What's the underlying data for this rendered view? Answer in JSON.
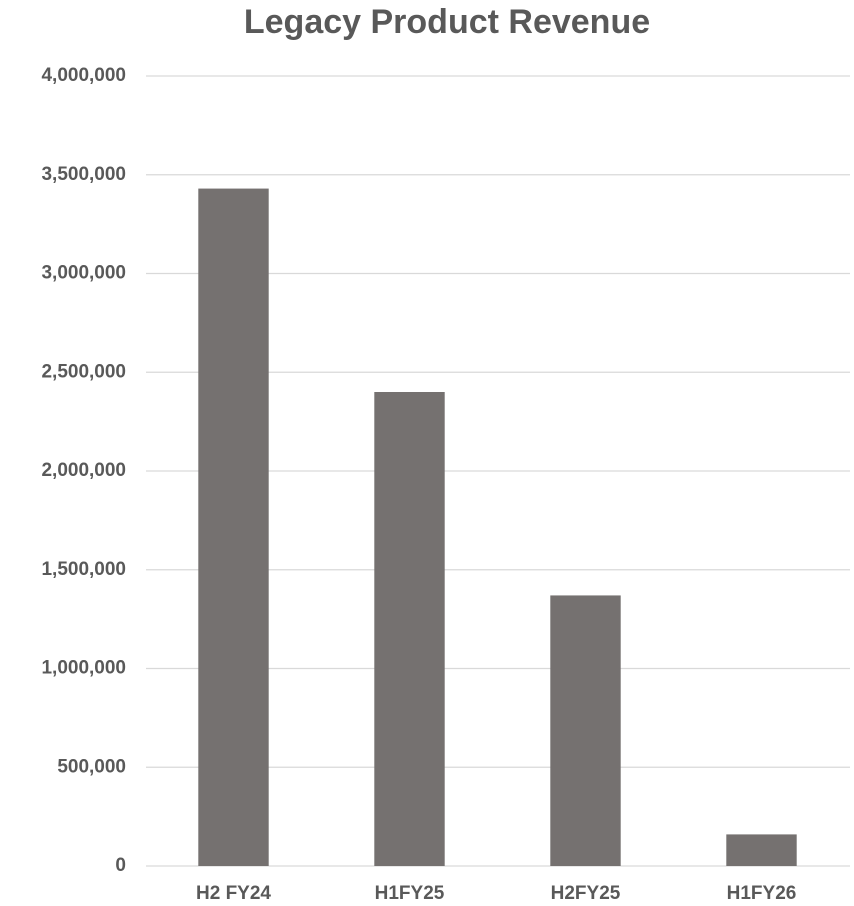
{
  "chart_data": {
    "type": "bar",
    "title": "Legacy Product Revenue",
    "categories": [
      "H2 FY24",
      "H1FY25",
      "H2FY25",
      "H1FY26"
    ],
    "values": [
      3430000,
      2400000,
      1370000,
      160000
    ],
    "color": "#757170",
    "ylim": [
      0,
      4000000
    ],
    "yticks": [
      0,
      {
        "value": 500000,
        "label": "500,000"
      },
      {
        "value": 1000000,
        "label": "1,000,000"
      },
      {
        "value": 1500000,
        "label": "1,500,000"
      },
      {
        "value": 2000000,
        "label": "2,000,000"
      },
      {
        "value": 2500000,
        "label": "2,500,000"
      },
      {
        "value": 3000000,
        "label": "3,000,000"
      },
      {
        "value": 3500000,
        "label": "3,500,000"
      },
      {
        "value": 4000000,
        "label": "4,000,000"
      }
    ],
    "grid": true
  }
}
